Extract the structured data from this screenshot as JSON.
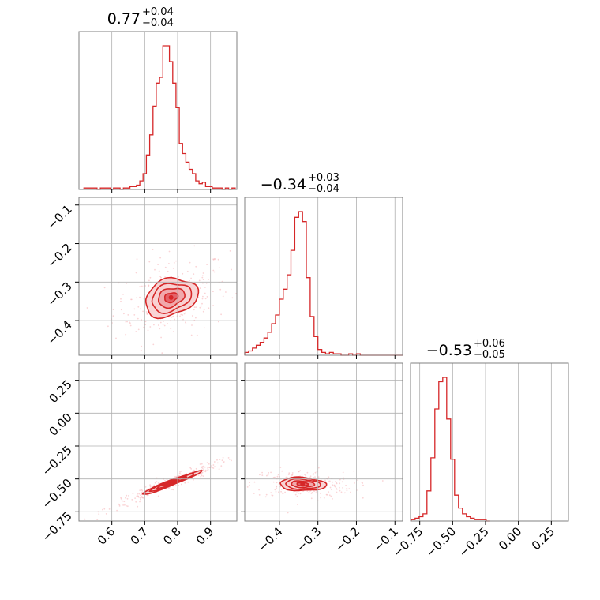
{
  "chart_data": {
    "type": "corner",
    "color": "#d62728",
    "fill_colors": [
      "#f8d0d1",
      "#efa3a6",
      "#e25a60"
    ],
    "scatter_color": "#f6b8ba",
    "params": [
      {
        "title": "0.77",
        "upper": "+0.04",
        "lower": "−0.04",
        "range": [
          0.5,
          0.98
        ],
        "ticks": [
          0.6,
          0.7,
          0.8,
          0.9
        ],
        "tick_labels": [
          "0.6",
          "0.7",
          "0.8",
          "0.9"
        ],
        "hist": {
          "bins": [
            0.52,
            0.53,
            0.54,
            0.55,
            0.56,
            0.57,
            0.58,
            0.59,
            0.6,
            0.61,
            0.62,
            0.63,
            0.64,
            0.65,
            0.66,
            0.67,
            0.68,
            0.69,
            0.7,
            0.71,
            0.72,
            0.73,
            0.74,
            0.75,
            0.76,
            0.77,
            0.78,
            0.79,
            0.8,
            0.81,
            0.82,
            0.83,
            0.84,
            0.85,
            0.86,
            0.87,
            0.88,
            0.89,
            0.9,
            0.91,
            0.92,
            0.93,
            0.94,
            0.95,
            0.96,
            0.97
          ],
          "heights": [
            0.01,
            0.01,
            0.01,
            0.01,
            0.0,
            0.01,
            0.01,
            0.01,
            0.0,
            0.01,
            0.01,
            0.0,
            0.01,
            0.01,
            0.02,
            0.02,
            0.03,
            0.06,
            0.11,
            0.24,
            0.38,
            0.58,
            0.74,
            0.78,
            1.0,
            1.0,
            0.89,
            0.74,
            0.57,
            0.32,
            0.25,
            0.19,
            0.14,
            0.11,
            0.06,
            0.04,
            0.05,
            0.02,
            0.02,
            0.01,
            0.01,
            0.01,
            0.0,
            0.01,
            0.0,
            0.01
          ]
        }
      },
      {
        "title": "−0.34",
        "upper": "+0.03",
        "lower": "−0.04",
        "range": [
          -0.49,
          -0.08
        ],
        "ticks": [
          -0.4,
          -0.3,
          -0.2,
          -0.1
        ],
        "tick_labels": [
          "−0.4",
          "−0.3",
          "−0.2",
          "−0.1"
        ],
        "hist": {
          "bins": [
            -0.485,
            -0.475,
            -0.465,
            -0.455,
            -0.445,
            -0.435,
            -0.425,
            -0.415,
            -0.405,
            -0.395,
            -0.385,
            -0.375,
            -0.365,
            -0.355,
            -0.345,
            -0.335,
            -0.325,
            -0.315,
            -0.305,
            -0.295,
            -0.285,
            -0.275,
            -0.265,
            -0.255,
            -0.245,
            -0.235,
            -0.225,
            -0.215,
            -0.205,
            -0.195,
            -0.185,
            -0.175,
            -0.165,
            -0.155,
            -0.145,
            -0.135,
            -0.125,
            -0.115,
            -0.105,
            -0.095,
            -0.085
          ],
          "heights": [
            0.02,
            0.03,
            0.05,
            0.07,
            0.09,
            0.12,
            0.16,
            0.22,
            0.28,
            0.39,
            0.46,
            0.56,
            0.73,
            0.96,
            1.0,
            0.93,
            0.54,
            0.27,
            0.13,
            0.04,
            0.02,
            0.01,
            0.02,
            0.01,
            0.01,
            0.0,
            0.0,
            0.01,
            0.0,
            0.01,
            0.0,
            0.0,
            0.0,
            0.0,
            0.0,
            0.0,
            0.0,
            0.0,
            0.0,
            0.0,
            0.0
          ]
        }
      },
      {
        "title": "−0.53",
        "upper": "+0.06",
        "lower": "−0.05",
        "range": [
          -0.82,
          0.38
        ],
        "ticks": [
          -0.75,
          -0.5,
          -0.25,
          0.0,
          0.25
        ],
        "tick_labels": [
          "−0.75",
          "−0.50",
          "−0.25",
          "0.00",
          "0.25"
        ],
        "hist": {
          "bins": [
            -0.8,
            -0.77,
            -0.74,
            -0.71,
            -0.68,
            -0.65,
            -0.62,
            -0.59,
            -0.56,
            -0.53,
            -0.5,
            -0.47,
            -0.44,
            -0.41,
            -0.38,
            -0.35,
            -0.32,
            -0.29,
            -0.26,
            -0.23
          ],
          "heights": [
            0.01,
            0.02,
            0.03,
            0.05,
            0.21,
            0.44,
            0.78,
            0.97,
            1.0,
            0.71,
            0.43,
            0.18,
            0.09,
            0.05,
            0.03,
            0.02,
            0.01,
            0.01,
            0.01,
            0.0
          ]
        }
      }
    ],
    "pairs": [
      {
        "row": 1,
        "col": 0,
        "center": [
          0.78,
          -0.34
        ],
        "sigma": [
          0.04,
          0.025
        ],
        "corr": 0.25
      },
      {
        "row": 2,
        "col": 0,
        "center": [
          0.78,
          -0.53
        ],
        "sigma": [
          0.045,
          0.045
        ],
        "corr": 0.97
      },
      {
        "row": 2,
        "col": 1,
        "center": [
          -0.34,
          -0.54
        ],
        "sigma": [
          0.03,
          0.025
        ],
        "corr": -0.1
      }
    ]
  }
}
